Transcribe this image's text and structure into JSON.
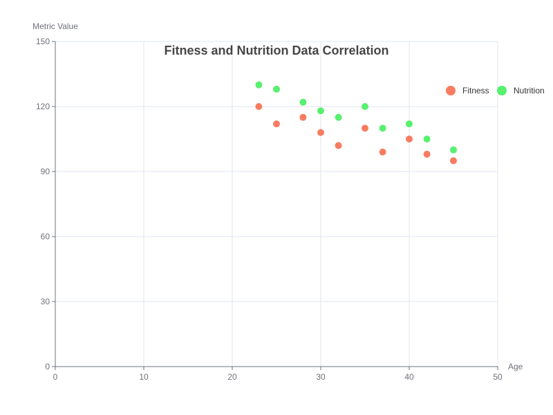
{
  "chart_data": {
    "type": "scatter",
    "title": "Fitness and Nutrition Data Correlation",
    "xlabel": "Age",
    "ylabel": "Metric Value",
    "xlim": [
      0,
      50
    ],
    "ylim": [
      0,
      150
    ],
    "x_ticks": [
      0,
      10,
      20,
      30,
      40,
      50
    ],
    "y_ticks": [
      0,
      30,
      60,
      90,
      120,
      150
    ],
    "grid": true,
    "legend_position": "top-right",
    "series": [
      {
        "name": "Fitness",
        "color": "#f97c61",
        "points": [
          [
            23,
            120
          ],
          [
            25,
            112
          ],
          [
            28,
            115
          ],
          [
            30,
            108
          ],
          [
            32,
            102
          ],
          [
            35,
            110
          ],
          [
            37,
            99
          ],
          [
            40,
            105
          ],
          [
            42,
            98
          ],
          [
            45,
            95
          ]
        ]
      },
      {
        "name": "Nutrition",
        "color": "#57f06f",
        "points": [
          [
            23,
            130
          ],
          [
            25,
            128
          ],
          [
            28,
            122
          ],
          [
            30,
            118
          ],
          [
            32,
            115
          ],
          [
            35,
            120
          ],
          [
            37,
            110
          ],
          [
            40,
            112
          ],
          [
            42,
            105
          ],
          [
            45,
            100
          ]
        ]
      }
    ]
  }
}
